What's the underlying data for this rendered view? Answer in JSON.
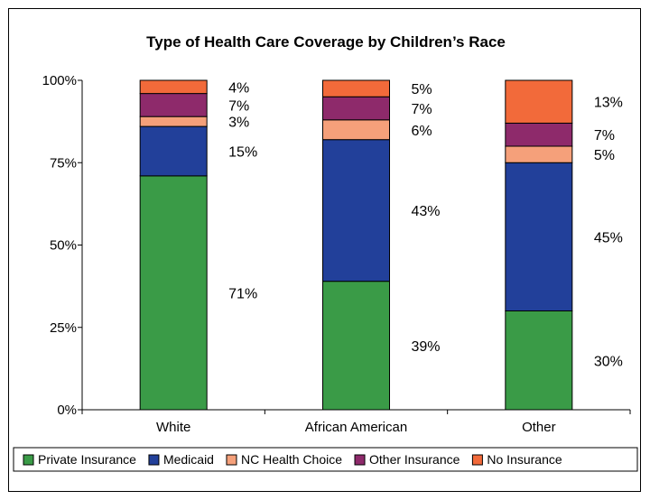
{
  "chart_data": {
    "type": "bar",
    "stacked": true,
    "title": "Type of Health Care Coverage by Children’s Race",
    "categories": [
      "White",
      "African American",
      "Other"
    ],
    "yticks": [
      "0%",
      "25%",
      "50%",
      "75%",
      "100%"
    ],
    "ylim": [
      0,
      100
    ],
    "grid": false,
    "legend_position": "bottom",
    "series": [
      {
        "name": "Private Insurance",
        "color": "#3a9b47",
        "values": [
          71,
          39,
          30
        ],
        "labels": [
          "71%",
          "39%",
          "30%"
        ]
      },
      {
        "name": "Medicaid",
        "color": "#22409a",
        "values": [
          15,
          43,
          45
        ],
        "labels": [
          "15%",
          "43%",
          "45%"
        ]
      },
      {
        "name": "NC Health Choice",
        "color": "#f5a07a",
        "values": [
          3,
          6,
          5
        ],
        "labels": [
          "3%",
          "6%",
          "5%"
        ]
      },
      {
        "name": "Other Insurance",
        "color": "#8e2a6b",
        "values": [
          7,
          7,
          7
        ],
        "labels": [
          "7%",
          "7%",
          "7%"
        ]
      },
      {
        "name": "No Insurance",
        "color": "#f26a3a",
        "values": [
          4,
          5,
          13
        ],
        "labels": [
          "4%",
          "5%",
          "13%"
        ]
      }
    ]
  }
}
